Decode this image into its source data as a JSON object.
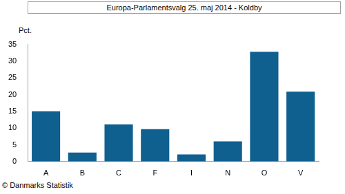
{
  "chart_data": {
    "type": "bar",
    "title": "Europa-Parlamentsvalg 25. maj 2014 - Koldby",
    "ylabel": "Pct.",
    "caption": "© Danmarks Statistik",
    "categories": [
      "A",
      "B",
      "C",
      "F",
      "I",
      "N",
      "O",
      "V"
    ],
    "values": [
      15.0,
      2.7,
      11.1,
      9.7,
      2.1,
      6.0,
      32.8,
      20.9
    ],
    "color": "#0f5f8f",
    "ylim": [
      0,
      35
    ],
    "yticks": [
      0,
      5,
      10,
      15,
      20,
      25,
      30,
      35
    ],
    "grid": false
  }
}
